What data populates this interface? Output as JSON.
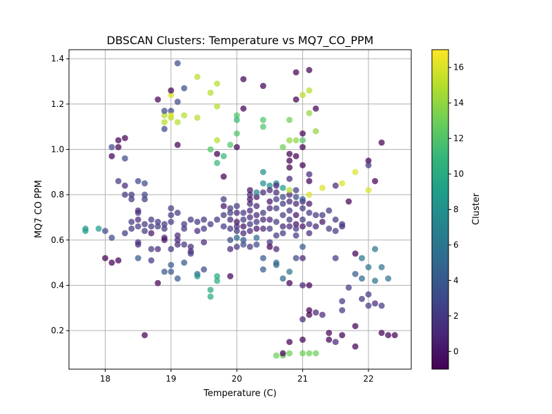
{
  "chart_data": {
    "type": "scatter",
    "title": "DBSCAN Clusters: Temperature vs MQ7_CO_PPM",
    "xlabel": "Temperature (C)",
    "ylabel": "MQ7 CO PPM",
    "xlim": [
      17.45,
      22.65
    ],
    "ylim": [
      0.03,
      1.44
    ],
    "xticks": [
      "18",
      "19",
      "20",
      "21",
      "22"
    ],
    "yticks": [
      "0.2",
      "0.4",
      "0.6",
      "0.8",
      "1.0",
      "1.2",
      "1.4"
    ],
    "grid": true,
    "colorbar": {
      "label": "Cluster",
      "range": [
        -1,
        17
      ],
      "ticks": [
        "0",
        "2",
        "4",
        "6",
        "8",
        "10",
        "12",
        "14",
        "16"
      ],
      "colormap": [
        "#440154",
        "#482878",
        "#3e4989",
        "#31688e",
        "#26828e",
        "#1f9e89",
        "#35b779",
        "#6ece58",
        "#b5de2b",
        "#fde725"
      ]
    },
    "points": [
      [
        17.7,
        0.64,
        9
      ],
      [
        17.7,
        0.65,
        9
      ],
      [
        17.9,
        0.65,
        9
      ],
      [
        18.0,
        0.52,
        -1
      ],
      [
        18.1,
        0.5,
        -1
      ],
      [
        18.2,
        0.51,
        -1
      ],
      [
        18.0,
        0.64,
        3
      ],
      [
        18.1,
        0.61,
        3
      ],
      [
        18.1,
        0.97,
        -1
      ],
      [
        18.2,
        1.01,
        -1
      ],
      [
        18.2,
        1.04,
        -1
      ],
      [
        18.3,
        1.05,
        -1
      ],
      [
        18.1,
        1.01,
        3
      ],
      [
        18.3,
        0.96,
        3
      ],
      [
        18.2,
        0.86,
        2
      ],
      [
        18.3,
        0.84,
        1
      ],
      [
        18.3,
        0.8,
        2
      ],
      [
        18.4,
        0.8,
        2
      ],
      [
        18.4,
        0.78,
        2
      ],
      [
        18.5,
        0.86,
        3
      ],
      [
        18.6,
        0.85,
        3
      ],
      [
        18.6,
        0.8,
        3
      ],
      [
        18.6,
        0.78,
        2
      ],
      [
        18.3,
        0.63,
        2
      ],
      [
        18.4,
        0.65,
        2
      ],
      [
        18.4,
        0.68,
        2
      ],
      [
        18.5,
        0.72,
        2
      ],
      [
        18.5,
        0.73,
        1
      ],
      [
        18.5,
        0.69,
        1
      ],
      [
        18.5,
        0.66,
        2
      ],
      [
        18.6,
        0.67,
        2
      ],
      [
        18.6,
        0.64,
        2
      ],
      [
        18.7,
        0.63,
        0
      ],
      [
        18.7,
        0.66,
        2
      ],
      [
        18.7,
        0.69,
        2
      ],
      [
        18.8,
        0.68,
        2
      ],
      [
        18.8,
        0.66,
        2
      ],
      [
        18.9,
        0.67,
        2
      ],
      [
        18.9,
        0.65,
        2
      ],
      [
        19.0,
        0.68,
        2
      ],
      [
        19.0,
        0.71,
        2
      ],
      [
        19.1,
        0.72,
        2
      ],
      [
        19.0,
        0.74,
        2
      ],
      [
        18.5,
        0.59,
        2
      ],
      [
        18.5,
        0.58,
        1
      ],
      [
        18.5,
        0.52,
        4
      ],
      [
        18.7,
        0.56,
        2
      ],
      [
        18.7,
        0.51,
        2
      ],
      [
        18.8,
        0.56,
        1
      ],
      [
        18.9,
        0.61,
        0
      ],
      [
        18.9,
        0.6,
        0
      ],
      [
        19.0,
        0.56,
        2
      ],
      [
        19.1,
        0.58,
        1
      ],
      [
        19.1,
        0.6,
        1
      ],
      [
        19.1,
        0.62,
        1
      ],
      [
        19.2,
        0.58,
        2
      ],
      [
        19.3,
        0.57,
        1
      ],
      [
        19.3,
        0.55,
        1
      ],
      [
        19.3,
        0.54,
        2
      ],
      [
        19.2,
        0.5,
        4
      ],
      [
        19.1,
        0.43,
        4
      ],
      [
        19.0,
        0.46,
        4
      ],
      [
        18.9,
        0.46,
        4
      ],
      [
        19.0,
        0.49,
        4
      ],
      [
        18.8,
        0.41,
        -1
      ],
      [
        18.6,
        0.18,
        -1
      ],
      [
        19.2,
        0.65,
        2
      ],
      [
        19.2,
        0.67,
        2
      ],
      [
        19.3,
        0.69,
        2
      ],
      [
        19.4,
        0.68,
        2
      ],
      [
        19.4,
        0.64,
        1
      ],
      [
        19.5,
        0.65,
        2
      ],
      [
        19.5,
        0.69,
        2
      ],
      [
        19.5,
        0.59,
        1
      ],
      [
        19.5,
        0.47,
        3
      ],
      [
        19.4,
        0.45,
        5
      ],
      [
        19.4,
        0.44,
        8
      ],
      [
        19.6,
        0.38,
        10
      ],
      [
        19.6,
        0.35,
        10
      ],
      [
        19.7,
        0.44,
        10
      ],
      [
        19.7,
        0.42,
        10
      ],
      [
        19.6,
        0.67,
        2
      ],
      [
        19.7,
        0.69,
        2
      ],
      [
        19.8,
        0.66,
        2
      ],
      [
        19.8,
        0.71,
        2
      ],
      [
        19.8,
        0.75,
        0
      ],
      [
        19.8,
        0.78,
        2
      ],
      [
        19.9,
        0.74,
        2
      ],
      [
        19.9,
        0.72,
        2
      ],
      [
        19.9,
        0.69,
        1
      ],
      [
        19.9,
        0.65,
        2
      ],
      [
        19.9,
        0.6,
        3
      ],
      [
        19.9,
        0.56,
        1
      ],
      [
        20.0,
        0.57,
        2
      ],
      [
        19.9,
        0.44,
        -1
      ],
      [
        20.0,
        0.61,
        5
      ],
      [
        20.0,
        0.64,
        2
      ],
      [
        20.0,
        0.66,
        1
      ],
      [
        20.0,
        0.68,
        0
      ],
      [
        20.0,
        0.72,
        1
      ],
      [
        20.0,
        0.75,
        2
      ],
      [
        20.1,
        0.72,
        2
      ],
      [
        20.1,
        0.69,
        2
      ],
      [
        20.1,
        0.66,
        0
      ],
      [
        20.1,
        0.63,
        1
      ],
      [
        20.1,
        0.6,
        4
      ],
      [
        20.1,
        0.58,
        3
      ],
      [
        20.2,
        0.57,
        2
      ],
      [
        20.2,
        0.64,
        1
      ],
      [
        20.2,
        0.67,
        2
      ],
      [
        20.2,
        0.7,
        1
      ],
      [
        20.2,
        0.73,
        1
      ],
      [
        20.2,
        0.76,
        1
      ],
      [
        20.2,
        0.78,
        0
      ],
      [
        20.2,
        0.8,
        1
      ],
      [
        20.2,
        0.82,
        0
      ],
      [
        20.3,
        0.79,
        0
      ],
      [
        20.3,
        0.75,
        1
      ],
      [
        20.3,
        0.71,
        1
      ],
      [
        20.3,
        0.68,
        2
      ],
      [
        20.3,
        0.65,
        0
      ],
      [
        20.3,
        0.61,
        5
      ],
      [
        20.3,
        0.58,
        3
      ],
      [
        20.4,
        0.65,
        1
      ],
      [
        20.4,
        0.69,
        1
      ],
      [
        20.4,
        0.72,
        2
      ],
      [
        20.5,
        0.77,
        0
      ],
      [
        20.5,
        0.74,
        1
      ],
      [
        20.5,
        0.69,
        1
      ],
      [
        20.5,
        0.65,
        2
      ],
      [
        20.5,
        0.59,
        2
      ],
      [
        20.5,
        0.57,
        -1
      ],
      [
        20.6,
        0.56,
        1
      ],
      [
        20.6,
        0.62,
        2
      ],
      [
        20.6,
        0.68,
        2
      ],
      [
        20.6,
        0.74,
        2
      ],
      [
        20.6,
        0.78,
        2
      ],
      [
        20.6,
        0.81,
        1
      ],
      [
        20.7,
        0.83,
        9
      ],
      [
        20.7,
        0.79,
        3
      ],
      [
        20.7,
        0.76,
        2
      ],
      [
        20.7,
        0.71,
        2
      ],
      [
        20.7,
        0.66,
        1
      ],
      [
        20.7,
        0.63,
        2
      ],
      [
        20.8,
        0.66,
        1
      ],
      [
        20.8,
        0.69,
        2
      ],
      [
        20.8,
        0.73,
        2
      ],
      [
        20.8,
        0.77,
        1
      ],
      [
        20.8,
        0.8,
        1
      ],
      [
        20.8,
        0.82,
        15
      ],
      [
        20.9,
        0.79,
        3
      ],
      [
        20.9,
        0.76,
        1
      ],
      [
        20.9,
        0.71,
        0
      ],
      [
        20.9,
        0.67,
        0
      ],
      [
        20.9,
        0.65,
        2
      ],
      [
        20.9,
        0.62,
        2
      ],
      [
        21.0,
        0.66,
        0
      ],
      [
        21.0,
        0.69,
        2
      ],
      [
        21.0,
        0.74,
        2
      ],
      [
        21.0,
        0.77,
        1
      ],
      [
        21.0,
        0.78,
        4
      ],
      [
        21.1,
        0.76,
        0
      ],
      [
        21.1,
        0.72,
        2
      ],
      [
        21.1,
        0.67,
        2
      ],
      [
        21.1,
        0.63,
        1
      ],
      [
        21.2,
        0.66,
        1
      ],
      [
        21.2,
        0.71,
        2
      ],
      [
        21.3,
        0.71,
        2
      ],
      [
        21.3,
        0.68,
        0
      ],
      [
        21.4,
        0.73,
        2
      ],
      [
        21.4,
        0.65,
        2
      ],
      [
        21.5,
        0.69,
        2
      ],
      [
        21.5,
        0.64,
        2
      ],
      [
        21.6,
        0.66,
        1
      ],
      [
        21.6,
        0.67,
        2
      ],
      [
        21.7,
        0.77,
        -1
      ],
      [
        21.5,
        0.52,
        2
      ],
      [
        21.3,
        0.27,
        1
      ],
      [
        21.4,
        0.19,
        -1
      ],
      [
        21.4,
        0.16,
        -1
      ],
      [
        21.5,
        0.15,
        1
      ],
      [
        21.6,
        0.18,
        -1
      ],
      [
        21.6,
        0.29,
        2
      ],
      [
        21.6,
        0.33,
        2
      ],
      [
        21.7,
        0.39,
        2
      ],
      [
        21.8,
        0.45,
        4
      ],
      [
        21.8,
        0.54,
        -1
      ],
      [
        21.9,
        0.52,
        6
      ],
      [
        21.9,
        0.43,
        5
      ],
      [
        21.9,
        0.34,
        2
      ],
      [
        21.8,
        0.22,
        -1
      ],
      [
        21.8,
        0.13,
        -1
      ],
      [
        22.0,
        0.31,
        2
      ],
      [
        22.0,
        0.36,
        2
      ],
      [
        22.0,
        0.48,
        6
      ],
      [
        22.1,
        0.56,
        6
      ],
      [
        22.1,
        0.42,
        6
      ],
      [
        22.2,
        0.48,
        6
      ],
      [
        22.3,
        0.43,
        6
      ],
      [
        22.1,
        0.32,
        1
      ],
      [
        22.2,
        0.31,
        2
      ],
      [
        22.2,
        0.19,
        -1
      ],
      [
        22.3,
        0.18,
        -1
      ],
      [
        22.4,
        0.18,
        -1
      ],
      [
        22.0,
        0.95,
        -1
      ],
      [
        22.0,
        0.93,
        2
      ],
      [
        22.1,
        0.86,
        -1
      ],
      [
        22.2,
        1.03,
        -1
      ],
      [
        21.6,
        0.85,
        16
      ],
      [
        21.5,
        0.84,
        1
      ],
      [
        21.8,
        0.9,
        16
      ],
      [
        22.0,
        0.82,
        16
      ],
      [
        21.3,
        0.83,
        16
      ],
      [
        21.1,
        0.8,
        16
      ],
      [
        21.1,
        0.86,
        -1
      ],
      [
        21.1,
        0.89,
        1
      ],
      [
        21.0,
        0.93,
        -1
      ],
      [
        21.0,
        1.01,
        -1
      ],
      [
        20.9,
        0.97,
        -1
      ],
      [
        20.8,
        0.98,
        -1
      ],
      [
        20.8,
        0.95,
        -1
      ],
      [
        20.8,
        0.92,
        -1
      ],
      [
        20.9,
        0.82,
        2
      ],
      [
        20.6,
        0.85,
        7
      ],
      [
        20.5,
        0.84,
        8
      ],
      [
        20.4,
        0.85,
        8
      ],
      [
        20.4,
        0.9,
        8
      ],
      [
        20.3,
        0.81,
        7
      ],
      [
        20.4,
        0.81,
        1
      ],
      [
        20.5,
        0.82,
        1
      ],
      [
        20.6,
        0.84,
        1
      ],
      [
        20.8,
        0.87,
        1
      ],
      [
        20.7,
        1.01,
        13
      ],
      [
        20.8,
        1.04,
        14
      ],
      [
        20.9,
        1.04,
        14
      ],
      [
        21.0,
        1.07,
        -1
      ],
      [
        21.0,
        1.04,
        12
      ],
      [
        21.2,
        1.08,
        14
      ],
      [
        21.1,
        1.16,
        14
      ],
      [
        21.2,
        1.18,
        -1
      ],
      [
        21.0,
        1.24,
        15
      ],
      [
        21.1,
        1.26,
        15
      ],
      [
        20.9,
        1.22,
        -1
      ],
      [
        20.9,
        1.34,
        -1
      ],
      [
        21.1,
        1.35,
        -1
      ],
      [
        20.8,
        1.13,
        13
      ],
      [
        20.4,
        1.13,
        12
      ],
      [
        20.4,
        1.1,
        12
      ],
      [
        20.4,
        1.28,
        -1
      ],
      [
        20.1,
        1.31,
        -1
      ],
      [
        20.1,
        1.18,
        -1
      ],
      [
        20.0,
        1.15,
        12
      ],
      [
        20.0,
        1.13,
        11
      ],
      [
        19.9,
        1.02,
        12
      ],
      [
        20.0,
        1.07,
        12
      ],
      [
        20.0,
        1.01,
        -1
      ],
      [
        19.8,
        0.97,
        11
      ],
      [
        19.7,
        0.94,
        11
      ],
      [
        19.6,
        1.0,
        12
      ],
      [
        19.7,
        0.98,
        -1
      ],
      [
        19.7,
        1.04,
        15
      ],
      [
        19.7,
        1.19,
        15
      ],
      [
        19.6,
        1.25,
        15
      ],
      [
        19.7,
        1.29,
        15
      ],
      [
        19.4,
        1.32,
        15
      ],
      [
        19.4,
        1.14,
        15
      ],
      [
        19.2,
        1.15,
        15
      ],
      [
        19.1,
        1.12,
        15
      ],
      [
        19.0,
        1.14,
        15
      ],
      [
        18.9,
        1.15,
        15
      ],
      [
        18.9,
        1.12,
        15
      ],
      [
        18.9,
        1.09,
        3
      ],
      [
        18.9,
        1.17,
        3
      ],
      [
        19.0,
        1.17,
        3
      ],
      [
        19.0,
        1.15,
        16
      ],
      [
        19.0,
        1.24,
        16
      ],
      [
        19.0,
        1.26,
        -1
      ],
      [
        18.8,
        1.22,
        -1
      ],
      [
        19.1,
        1.21,
        3
      ],
      [
        19.1,
        1.38,
        3
      ],
      [
        19.2,
        1.27,
        3
      ],
      [
        19.1,
        1.02,
        -1
      ],
      [
        19.8,
        0.88,
        -1
      ],
      [
        20.6,
        0.5,
        5
      ],
      [
        20.6,
        0.49,
        5
      ],
      [
        20.7,
        0.43,
        5
      ],
      [
        20.8,
        0.46,
        6
      ],
      [
        20.9,
        0.52,
        3
      ],
      [
        20.4,
        0.52,
        4
      ],
      [
        20.4,
        0.47,
        4
      ],
      [
        21.0,
        0.57,
        4
      ],
      [
        21.0,
        0.52,
        1
      ],
      [
        20.8,
        0.41,
        -1
      ],
      [
        21.0,
        0.4,
        1
      ],
      [
        21.1,
        0.4,
        -1
      ],
      [
        21.1,
        0.29,
        -1
      ],
      [
        21.1,
        0.27,
        -1
      ],
      [
        21.2,
        0.28,
        1
      ],
      [
        21.0,
        0.25,
        1
      ],
      [
        21.0,
        0.16,
        -1
      ],
      [
        20.8,
        0.15,
        -1
      ],
      [
        20.6,
        0.09,
        13
      ],
      [
        20.7,
        0.09,
        13
      ],
      [
        20.8,
        0.1,
        13
      ],
      [
        21.0,
        0.1,
        13
      ],
      [
        21.1,
        0.1,
        13
      ],
      [
        21.2,
        0.1,
        13
      ],
      [
        20.7,
        0.1,
        -1
      ]
    ]
  }
}
